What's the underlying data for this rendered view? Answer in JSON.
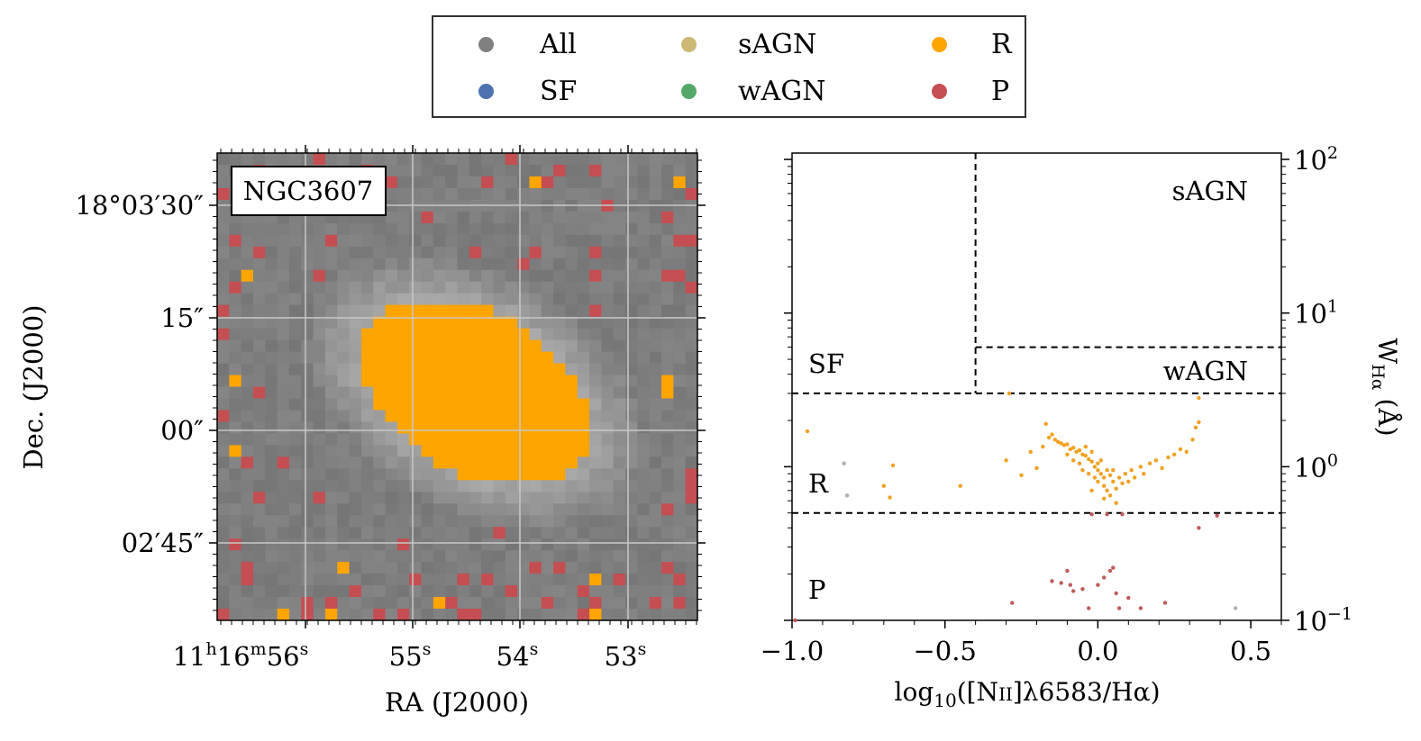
{
  "legend": {
    "items": [
      {
        "label": "All",
        "color": "#808080"
      },
      {
        "label": "SF",
        "color": "#4c72b0"
      },
      {
        "label": "sAGN",
        "color": "#ccb974"
      },
      {
        "label": "wAGN",
        "color": "#55a868"
      },
      {
        "label": "R",
        "color": "#ffa500"
      },
      {
        "label": "P",
        "color": "#c44e52"
      }
    ]
  },
  "map_panel": {
    "galaxy_label": "NGC3607",
    "xlabel": "RA (J2000)",
    "ylabel": "Dec. (J2000)",
    "x_ticks": [
      {
        "text": "11",
        "sup1": "h",
        "mid": "16",
        "sup2": "m",
        "end": "56",
        "sup3": "s"
      },
      {
        "text": "55",
        "sup3": "s"
      },
      {
        "text": "54",
        "sup3": "s"
      },
      {
        "text": "53",
        "sup3": "s"
      }
    ],
    "y_ticks": [
      "18°03′30″",
      "15″",
      "00″",
      "02′45″"
    ],
    "background_color": "#808080",
    "colors": {
      "R": "#ffa500",
      "P": "#c44e52"
    }
  },
  "chart_data": {
    "type": "scatter",
    "xlabel": "log10([NII]λ6583/Hα)",
    "ylabel": "WHα (Å)",
    "xlim": [
      -1.0,
      0.6
    ],
    "ylim": [
      0.1,
      110
    ],
    "yscale": "log",
    "x_ticks": [
      -1.0,
      -0.5,
      0.0,
      0.5
    ],
    "x_tick_labels": [
      "−1.0",
      "−0.5",
      "0.0",
      "0.5"
    ],
    "y_ticks": [
      0.1,
      1,
      10,
      100
    ],
    "y_tick_labels": [
      "10",
      "10",
      "10",
      "10"
    ],
    "y_tick_exponents": [
      "−1",
      "0",
      "1",
      "2"
    ],
    "region_labels": [
      "sAGN",
      "SF",
      "wAGN",
      "R",
      "P"
    ],
    "boundaries": {
      "sf_agn_x": -0.4,
      "wagn_y": 6,
      "sf_y": 3,
      "r_y": 0.5
    },
    "series": [
      {
        "name": "R",
        "color": "#f0a020",
        "points": [
          [
            -0.95,
            1.7
          ],
          [
            -0.82,
            0.65
          ],
          [
            -0.7,
            0.75
          ],
          [
            -0.67,
            1.02
          ],
          [
            -0.68,
            0.63
          ],
          [
            -0.45,
            0.75
          ],
          [
            -0.29,
            3.0
          ],
          [
            -0.22,
            1.25
          ],
          [
            -0.2,
            0.98
          ],
          [
            -0.18,
            1.35
          ],
          [
            -0.17,
            1.9
          ],
          [
            -0.16,
            1.55
          ],
          [
            -0.15,
            1.62
          ],
          [
            -0.14,
            1.5
          ],
          [
            -0.13,
            1.45
          ],
          [
            -0.12,
            1.42
          ],
          [
            -0.11,
            1.38
          ],
          [
            -0.1,
            1.4
          ],
          [
            -0.1,
            1.2
          ],
          [
            -0.09,
            1.3
          ],
          [
            -0.08,
            1.33
          ],
          [
            -0.08,
            1.1
          ],
          [
            -0.07,
            1.25
          ],
          [
            -0.06,
            1.28
          ],
          [
            -0.06,
            1.05
          ],
          [
            -0.05,
            1.2
          ],
          [
            -0.05,
            0.95
          ],
          [
            -0.04,
            1.18
          ],
          [
            -0.04,
            1.35
          ],
          [
            -0.03,
            1.12
          ],
          [
            -0.03,
            0.9
          ],
          [
            -0.02,
            1.08
          ],
          [
            -0.02,
            1.25
          ],
          [
            -0.01,
            1.0
          ],
          [
            -0.01,
            0.85
          ],
          [
            0.0,
            1.05
          ],
          [
            0.0,
            0.95
          ],
          [
            0.0,
            0.8
          ],
          [
            0.01,
            0.9
          ],
          [
            0.01,
            1.1
          ],
          [
            0.02,
            0.85
          ],
          [
            0.02,
            0.75
          ],
          [
            0.03,
            0.95
          ],
          [
            0.03,
            0.7
          ],
          [
            0.04,
            0.88
          ],
          [
            0.04,
            0.65
          ],
          [
            0.05,
            0.8
          ],
          [
            0.05,
            0.95
          ],
          [
            0.06,
            0.72
          ],
          [
            0.07,
            0.85
          ],
          [
            0.08,
            0.78
          ],
          [
            0.09,
            0.9
          ],
          [
            0.1,
            0.8
          ],
          [
            0.11,
            0.95
          ],
          [
            0.12,
            0.85
          ],
          [
            0.14,
            1.0
          ],
          [
            0.15,
            0.9
          ],
          [
            0.17,
            1.05
          ],
          [
            0.19,
            1.1
          ],
          [
            0.21,
            0.98
          ],
          [
            0.23,
            1.15
          ],
          [
            0.25,
            1.2
          ],
          [
            0.27,
            1.3
          ],
          [
            0.29,
            1.25
          ],
          [
            0.31,
            1.5
          ],
          [
            0.32,
            1.8
          ],
          [
            0.33,
            1.95
          ],
          [
            0.33,
            2.8
          ],
          [
            -0.3,
            1.1
          ],
          [
            -0.25,
            0.88
          ],
          [
            0.06,
            0.58
          ],
          [
            0.02,
            0.62
          ],
          [
            -0.02,
            0.7
          ]
        ]
      },
      {
        "name": "P",
        "color": "#c05a5a",
        "points": [
          [
            -0.99,
            0.1
          ],
          [
            -0.28,
            0.13
          ],
          [
            -0.15,
            0.18
          ],
          [
            -0.12,
            0.175
          ],
          [
            -0.1,
            0.21
          ],
          [
            -0.09,
            0.17
          ],
          [
            -0.08,
            0.155
          ],
          [
            -0.05,
            0.16
          ],
          [
            -0.03,
            0.12
          ],
          [
            0.0,
            0.17
          ],
          [
            0.02,
            0.19
          ],
          [
            0.04,
            0.21
          ],
          [
            0.05,
            0.22
          ],
          [
            0.06,
            0.15
          ],
          [
            0.07,
            0.12
          ],
          [
            0.1,
            0.14
          ],
          [
            0.14,
            0.12
          ],
          [
            0.22,
            0.13
          ],
          [
            0.33,
            0.4
          ],
          [
            0.39,
            0.48
          ],
          [
            -0.02,
            0.49
          ],
          [
            0.03,
            0.49
          ],
          [
            0.08,
            0.49
          ]
        ]
      },
      {
        "name": "All",
        "color": "#b0b0b0",
        "points": [
          [
            -0.83,
            1.05
          ],
          [
            -0.82,
            0.65
          ],
          [
            0.45,
            0.12
          ]
        ]
      }
    ]
  }
}
